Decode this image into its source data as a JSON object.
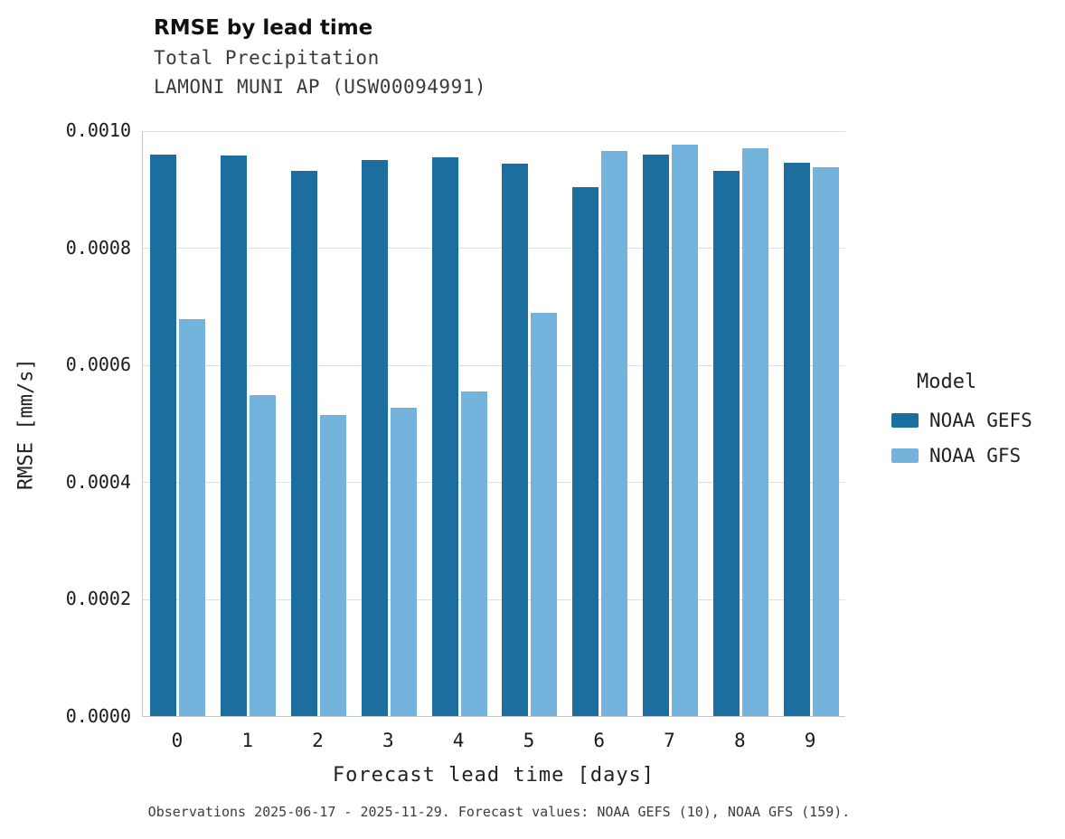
{
  "chart_data": {
    "type": "bar",
    "title": "RMSE by lead time",
    "subtitle": [
      "Total Precipitation",
      "LAMONI MUNI AP (USW00094991)"
    ],
    "xlabel": "Forecast lead time [days]",
    "ylabel": "RMSE [mm/s]",
    "categories": [
      "0",
      "1",
      "2",
      "3",
      "4",
      "5",
      "6",
      "7",
      "8",
      "9"
    ],
    "series": [
      {
        "name": "NOAA GEFS",
        "color": "#1b6e9e",
        "values": [
          0.000958,
          0.000957,
          0.00093,
          0.000949,
          0.000954,
          0.000943,
          0.000903,
          0.000958,
          0.00093,
          0.000944
        ]
      },
      {
        "name": "NOAA GFS",
        "color": "#74b4dc",
        "values": [
          0.000677,
          0.000548,
          0.000514,
          0.000526,
          0.000554,
          0.000688,
          0.000965,
          0.000975,
          0.000969,
          0.000937
        ]
      }
    ],
    "ylim": [
      0,
      0.001
    ],
    "ytick_step": 0.0002,
    "ytick_format_decimals": 4,
    "grid": "horizontal",
    "legend_position": "right",
    "legend_title": "Model",
    "caption": "Observations 2025-06-17 - 2025-11-29. Forecast values: NOAA GEFS (10), NOAA GFS (159)."
  }
}
